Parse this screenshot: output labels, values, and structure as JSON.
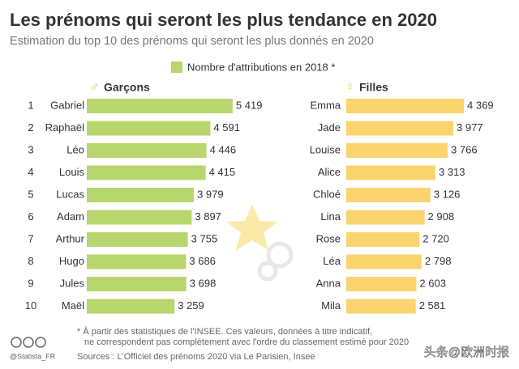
{
  "header": {
    "title": "Les prénoms qui seront les plus tendance en 2020",
    "subtitle": "Estimation du top 10 des prénoms qui seront les plus donnés en 2020",
    "legend": "Nombre d'attributions en 2018 *"
  },
  "chart_data": [
    {
      "type": "bar",
      "orientation": "horizontal",
      "title": "Garçons",
      "symbol": "♂",
      "color": "#b8d66e",
      "ranks": [
        1,
        2,
        3,
        4,
        5,
        6,
        7,
        8,
        9,
        10
      ],
      "categories": [
        "Gabriel",
        "Raphaël",
        "Léo",
        "Louis",
        "Lucas",
        "Adam",
        "Arthur",
        "Hugo",
        "Jules",
        "Maël"
      ],
      "values": [
        5419,
        4591,
        4446,
        4415,
        3979,
        3897,
        3755,
        3686,
        3698,
        3259
      ],
      "value_labels": [
        "5 419",
        "4 591",
        "4 446",
        "4 415",
        "3 979",
        "3 897",
        "3 755",
        "3 686",
        "3 698",
        "3 259"
      ]
    },
    {
      "type": "bar",
      "orientation": "horizontal",
      "title": "Filles",
      "symbol": "♀",
      "color": "#fbd46f",
      "categories": [
        "Emma",
        "Jade",
        "Louise",
        "Alice",
        "Chloé",
        "Lina",
        "Rose",
        "Léa",
        "Anna",
        "Mila"
      ],
      "values": [
        4369,
        3977,
        3766,
        3313,
        3126,
        2908,
        2720,
        2798,
        2603,
        2581
      ],
      "value_labels": [
        "4 369",
        "3 977",
        "3 766",
        "3 313",
        "3 126",
        "2 908",
        "2 720",
        "2 798",
        "2 603",
        "2 581"
      ]
    }
  ],
  "footer": {
    "note_lines": [
      "* À partir des statistiques de l'INSEE. Ces valeurs, données à titre indicatif,",
      "ne correspondent pas complètement avec l'ordre du classement estimé pour 2020"
    ],
    "sources": "Sources : L'Officiel des prénoms 2020 via Le Parisien, Insee",
    "credit": "@Statista_FR",
    "watermark": "头条@欧洲时报"
  }
}
